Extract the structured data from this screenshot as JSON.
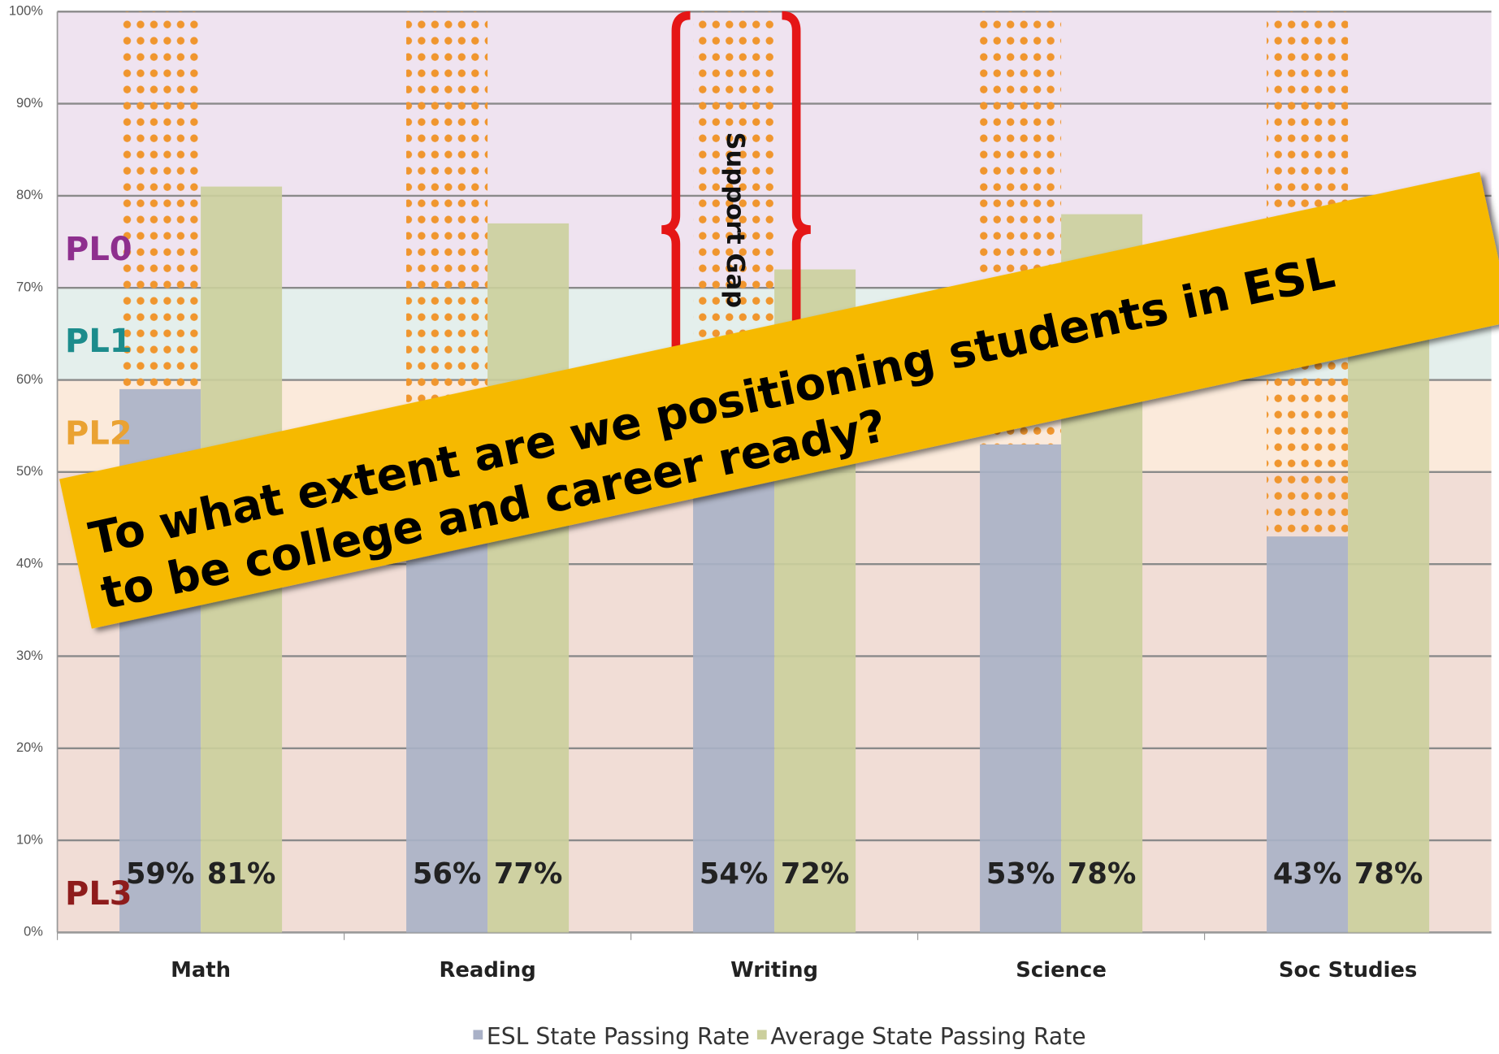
{
  "chart_data": {
    "type": "bar",
    "categories": [
      "Math",
      "Reading",
      "Writing",
      "Science",
      "Soc Studies"
    ],
    "series": [
      {
        "name": "ESL State Passing Rate",
        "color": "#a9b1c7",
        "values": [
          59,
          56,
          54,
          53,
          43
        ],
        "value_labels": [
          "59%",
          "56%",
          "54%",
          "53%",
          "43%"
        ]
      },
      {
        "name": "Average State Passing Rate",
        "color": "#cbcf9c",
        "values": [
          81,
          77,
          72,
          78,
          78
        ],
        "value_labels": [
          "81%",
          "77%",
          "72%",
          "78%",
          "78%"
        ]
      }
    ],
    "ylim": [
      0,
      100
    ],
    "yticks": [
      {
        "value": 0,
        "label": "0%"
      },
      {
        "value": 10,
        "label": "10%"
      },
      {
        "value": 20,
        "label": "20%"
      },
      {
        "value": 30,
        "label": "30%"
      },
      {
        "value": 40,
        "label": "40%"
      },
      {
        "value": 50,
        "label": "50%"
      },
      {
        "value": 60,
        "label": "60%"
      },
      {
        "value": 70,
        "label": "70%"
      },
      {
        "value": 80,
        "label": "80%"
      },
      {
        "value": 90,
        "label": "90%"
      },
      {
        "value": 100,
        "label": "100%"
      }
    ],
    "grid": true,
    "bands": [
      {
        "label": "PL0",
        "from": 70,
        "to": 100,
        "color": "#efe3f0",
        "label_color": "#8e2f8e"
      },
      {
        "label": "PL1",
        "from": 60,
        "to": 70,
        "color": "#e4efec",
        "label_color": "#1c8c8c"
      },
      {
        "label": "PL2",
        "from": 50,
        "to": 60,
        "color": "#fbeadb",
        "label_color": "#eaa232"
      },
      {
        "label": "PL3",
        "from": 0,
        "to": 50,
        "color": "#f1ddd6",
        "label_color": "#8e1c1c"
      }
    ],
    "gap_color": "#f0962e",
    "annotation": "Support Gap",
    "banner": [
      "To what extent are we positioning students in ESL",
      "to be college and career ready?"
    ]
  }
}
